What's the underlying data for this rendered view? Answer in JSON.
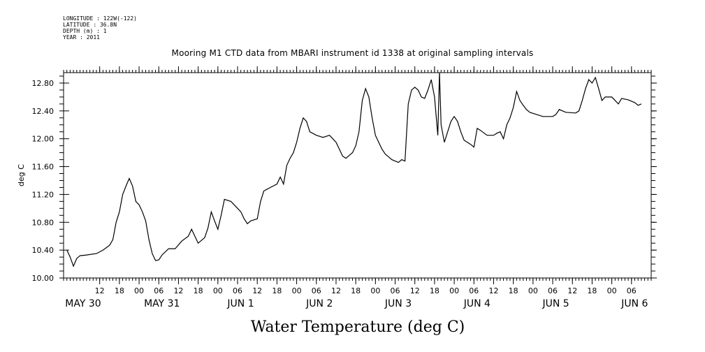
{
  "header": {
    "meta_lines": [
      "LONGITUDE : 122W(-122)",
      "LATITUDE : 36.8N",
      "DEPTH (m) : 1",
      "YEAR : 2011"
    ],
    "title": "Mooring M1 CTD data from MBARI instrument id 1338 at original sampling intervals"
  },
  "chart_data": {
    "type": "line",
    "title": "Mooring M1 CTD data from MBARI instrument id 1338 at original sampling intervals",
    "xlabel": "Water Temperature (deg C)",
    "ylabel": "deg C",
    "ylim": [
      10.0,
      12.95
    ],
    "yticks": [
      "10.00",
      "10.40",
      "10.80",
      "11.20",
      "11.60",
      "12.00",
      "12.40",
      "12.80"
    ],
    "xlim": [
      "2011-05-30T01:00",
      "2011-06-06T12:00"
    ],
    "x_hour_ticks": [
      {
        "x": "2011-05-30T12:00",
        "label": "12"
      },
      {
        "x": "2011-05-30T18:00",
        "label": "18"
      },
      {
        "x": "2011-05-31T00:00",
        "label": "00"
      },
      {
        "x": "2011-05-31T06:00",
        "label": "06"
      },
      {
        "x": "2011-05-31T12:00",
        "label": "12"
      },
      {
        "x": "2011-05-31T18:00",
        "label": "18"
      },
      {
        "x": "2011-06-01T00:00",
        "label": "00"
      },
      {
        "x": "2011-06-01T06:00",
        "label": "06"
      },
      {
        "x": "2011-06-01T12:00",
        "label": "12"
      },
      {
        "x": "2011-06-01T18:00",
        "label": "18"
      },
      {
        "x": "2011-06-02T00:00",
        "label": "00"
      },
      {
        "x": "2011-06-02T06:00",
        "label": "06"
      },
      {
        "x": "2011-06-02T12:00",
        "label": "12"
      },
      {
        "x": "2011-06-02T18:00",
        "label": "18"
      },
      {
        "x": "2011-06-03T00:00",
        "label": "00"
      },
      {
        "x": "2011-06-03T06:00",
        "label": "06"
      },
      {
        "x": "2011-06-03T12:00",
        "label": "12"
      },
      {
        "x": "2011-06-03T18:00",
        "label": "18"
      },
      {
        "x": "2011-06-04T00:00",
        "label": "00"
      },
      {
        "x": "2011-06-04T06:00",
        "label": "06"
      },
      {
        "x": "2011-06-04T12:00",
        "label": "12"
      },
      {
        "x": "2011-06-04T18:00",
        "label": "18"
      },
      {
        "x": "2011-06-05T00:00",
        "label": "00"
      },
      {
        "x": "2011-06-05T06:00",
        "label": "06"
      },
      {
        "x": "2011-06-05T12:00",
        "label": "12"
      },
      {
        "x": "2011-06-05T18:00",
        "label": "18"
      },
      {
        "x": "2011-06-06T00:00",
        "label": "00"
      },
      {
        "x": "2011-06-06T06:00",
        "label": "06"
      }
    ],
    "x_day_labels": [
      {
        "x": "2011-05-30T01:00",
        "label": "MAY 30"
      },
      {
        "x": "2011-05-31T01:00",
        "label": "MAY 31"
      },
      {
        "x": "2011-06-01T01:00",
        "label": "JUN  1"
      },
      {
        "x": "2011-06-02T01:00",
        "label": "JUN  2"
      },
      {
        "x": "2011-06-03T01:00",
        "label": "JUN  3"
      },
      {
        "x": "2011-06-04T01:00",
        "label": "JUN  4"
      },
      {
        "x": "2011-06-05T01:00",
        "label": "JUN  5"
      },
      {
        "x": "2011-06-06T01:00",
        "label": "JUN  6"
      }
    ],
    "grid": false,
    "series": [
      {
        "name": "",
        "color": "#000000",
        "points": [
          [
            "2011-05-30T02:00",
            10.4
          ],
          [
            "2011-05-30T03:00",
            10.3
          ],
          [
            "2011-05-30T04:00",
            10.17
          ],
          [
            "2011-05-30T05:00",
            10.28
          ],
          [
            "2011-05-30T06:00",
            10.32
          ],
          [
            "2011-05-30T08:00",
            10.33
          ],
          [
            "2011-05-30T11:00",
            10.35
          ],
          [
            "2011-05-30T13:00",
            10.4
          ],
          [
            "2011-05-30T15:00",
            10.47
          ],
          [
            "2011-05-30T16:00",
            10.55
          ],
          [
            "2011-05-30T17:00",
            10.8
          ],
          [
            "2011-05-30T18:00",
            10.95
          ],
          [
            "2011-05-30T19:00",
            11.2
          ],
          [
            "2011-05-30T20:00",
            11.32
          ],
          [
            "2011-05-30T21:00",
            11.43
          ],
          [
            "2011-05-30T22:00",
            11.32
          ],
          [
            "2011-05-30T23:00",
            11.1
          ],
          [
            "2011-05-31T00:00",
            11.05
          ],
          [
            "2011-05-31T01:00",
            10.95
          ],
          [
            "2011-05-31T02:00",
            10.82
          ],
          [
            "2011-05-31T03:00",
            10.55
          ],
          [
            "2011-05-31T04:00",
            10.35
          ],
          [
            "2011-05-31T05:00",
            10.25
          ],
          [
            "2011-05-31T06:00",
            10.26
          ],
          [
            "2011-05-31T07:00",
            10.33
          ],
          [
            "2011-05-31T09:00",
            10.42
          ],
          [
            "2011-05-31T11:00",
            10.42
          ],
          [
            "2011-05-31T13:00",
            10.53
          ],
          [
            "2011-05-31T15:00",
            10.6
          ],
          [
            "2011-05-31T16:00",
            10.7
          ],
          [
            "2011-05-31T17:00",
            10.6
          ],
          [
            "2011-05-31T18:00",
            10.5
          ],
          [
            "2011-05-31T20:00",
            10.58
          ],
          [
            "2011-05-31T21:00",
            10.72
          ],
          [
            "2011-05-31T22:00",
            10.95
          ],
          [
            "2011-05-31T23:00",
            10.82
          ],
          [
            "2011-06-01T00:00",
            10.7
          ],
          [
            "2011-06-01T01:00",
            10.9
          ],
          [
            "2011-06-01T02:00",
            11.13
          ],
          [
            "2011-06-01T04:00",
            11.1
          ],
          [
            "2011-06-01T06:00",
            11.0
          ],
          [
            "2011-06-01T07:00",
            10.95
          ],
          [
            "2011-06-01T08:00",
            10.85
          ],
          [
            "2011-06-01T09:00",
            10.78
          ],
          [
            "2011-06-01T10:00",
            10.82
          ],
          [
            "2011-06-01T12:00",
            10.85
          ],
          [
            "2011-06-01T13:00",
            11.1
          ],
          [
            "2011-06-01T14:00",
            11.25
          ],
          [
            "2011-06-01T16:00",
            11.3
          ],
          [
            "2011-06-01T18:00",
            11.35
          ],
          [
            "2011-06-01T19:00",
            11.45
          ],
          [
            "2011-06-01T20:00",
            11.35
          ],
          [
            "2011-06-01T21:00",
            11.62
          ],
          [
            "2011-06-01T22:00",
            11.72
          ],
          [
            "2011-06-01T23:00",
            11.8
          ],
          [
            "2011-06-02T00:00",
            11.95
          ],
          [
            "2011-06-02T01:00",
            12.15
          ],
          [
            "2011-06-02T02:00",
            12.3
          ],
          [
            "2011-06-02T03:00",
            12.25
          ],
          [
            "2011-06-02T04:00",
            12.1
          ],
          [
            "2011-06-02T06:00",
            12.05
          ],
          [
            "2011-06-02T08:00",
            12.02
          ],
          [
            "2011-06-02T10:00",
            12.05
          ],
          [
            "2011-06-02T11:00",
            12.0
          ],
          [
            "2011-06-02T12:00",
            11.95
          ],
          [
            "2011-06-02T13:00",
            11.85
          ],
          [
            "2011-06-02T14:00",
            11.75
          ],
          [
            "2011-06-02T15:00",
            11.72
          ],
          [
            "2011-06-02T16:00",
            11.76
          ],
          [
            "2011-06-02T17:00",
            11.8
          ],
          [
            "2011-06-02T18:00",
            11.9
          ],
          [
            "2011-06-02T19:00",
            12.1
          ],
          [
            "2011-06-02T20:00",
            12.55
          ],
          [
            "2011-06-02T21:00",
            12.72
          ],
          [
            "2011-06-02T22:00",
            12.6
          ],
          [
            "2011-06-02T23:00",
            12.3
          ],
          [
            "2011-06-03T00:00",
            12.05
          ],
          [
            "2011-06-03T01:00",
            11.95
          ],
          [
            "2011-06-03T02:00",
            11.85
          ],
          [
            "2011-06-03T03:00",
            11.78
          ],
          [
            "2011-06-03T04:00",
            11.74
          ],
          [
            "2011-06-03T05:00",
            11.7
          ],
          [
            "2011-06-03T06:00",
            11.68
          ],
          [
            "2011-06-03T07:00",
            11.66
          ],
          [
            "2011-06-03T08:00",
            11.7
          ],
          [
            "2011-06-03T09:00",
            11.68
          ],
          [
            "2011-06-03T10:00",
            12.5
          ],
          [
            "2011-06-03T11:00",
            12.7
          ],
          [
            "2011-06-03T12:00",
            12.74
          ],
          [
            "2011-06-03T13:00",
            12.7
          ],
          [
            "2011-06-03T14:00",
            12.6
          ],
          [
            "2011-06-03T15:00",
            12.58
          ],
          [
            "2011-06-03T16:00",
            12.7
          ],
          [
            "2011-06-03T17:00",
            12.85
          ],
          [
            "2011-06-03T18:00",
            12.6
          ],
          [
            "2011-06-03T19:00",
            12.05
          ],
          [
            "2011-06-03T19:30",
            12.95
          ],
          [
            "2011-06-03T20:00",
            12.2
          ],
          [
            "2011-06-03T21:00",
            11.95
          ],
          [
            "2011-06-03T22:00",
            12.1
          ],
          [
            "2011-06-03T23:00",
            12.25
          ],
          [
            "2011-06-04T00:00",
            12.32
          ],
          [
            "2011-06-04T01:00",
            12.25
          ],
          [
            "2011-06-04T02:00",
            12.1
          ],
          [
            "2011-06-04T03:00",
            11.98
          ],
          [
            "2011-06-04T04:00",
            11.95
          ],
          [
            "2011-06-04T05:00",
            11.92
          ],
          [
            "2011-06-04T06:00",
            11.88
          ],
          [
            "2011-06-04T07:00",
            12.15
          ],
          [
            "2011-06-04T08:00",
            12.12
          ],
          [
            "2011-06-04T10:00",
            12.05
          ],
          [
            "2011-06-04T12:00",
            12.05
          ],
          [
            "2011-06-04T13:00",
            12.08
          ],
          [
            "2011-06-04T14:00",
            12.1
          ],
          [
            "2011-06-04T15:00",
            12.0
          ],
          [
            "2011-06-04T16:00",
            12.2
          ],
          [
            "2011-06-04T17:00",
            12.3
          ],
          [
            "2011-06-04T18:00",
            12.45
          ],
          [
            "2011-06-04T19:00",
            12.68
          ],
          [
            "2011-06-04T20:00",
            12.55
          ],
          [
            "2011-06-04T21:00",
            12.48
          ],
          [
            "2011-06-04T22:00",
            12.42
          ],
          [
            "2011-06-04T23:00",
            12.38
          ],
          [
            "2011-06-05T01:00",
            12.35
          ],
          [
            "2011-06-05T03:00",
            12.32
          ],
          [
            "2011-06-05T06:00",
            12.32
          ],
          [
            "2011-06-05T07:00",
            12.35
          ],
          [
            "2011-06-05T08:00",
            12.42
          ],
          [
            "2011-06-05T10:00",
            12.38
          ],
          [
            "2011-06-05T13:00",
            12.37
          ],
          [
            "2011-06-05T14:00",
            12.4
          ],
          [
            "2011-06-05T15:00",
            12.55
          ],
          [
            "2011-06-05T16:00",
            12.72
          ],
          [
            "2011-06-05T17:00",
            12.85
          ],
          [
            "2011-06-05T18:00",
            12.8
          ],
          [
            "2011-06-05T19:00",
            12.88
          ],
          [
            "2011-06-05T20:00",
            12.72
          ],
          [
            "2011-06-05T21:00",
            12.55
          ],
          [
            "2011-06-05T22:00",
            12.6
          ],
          [
            "2011-06-06T00:00",
            12.6
          ],
          [
            "2011-06-06T02:00",
            12.5
          ],
          [
            "2011-06-06T03:00",
            12.58
          ],
          [
            "2011-06-06T05:00",
            12.56
          ],
          [
            "2011-06-06T07:00",
            12.52
          ],
          [
            "2011-06-06T08:00",
            12.48
          ],
          [
            "2011-06-06T09:00",
            12.5
          ]
        ]
      }
    ]
  }
}
